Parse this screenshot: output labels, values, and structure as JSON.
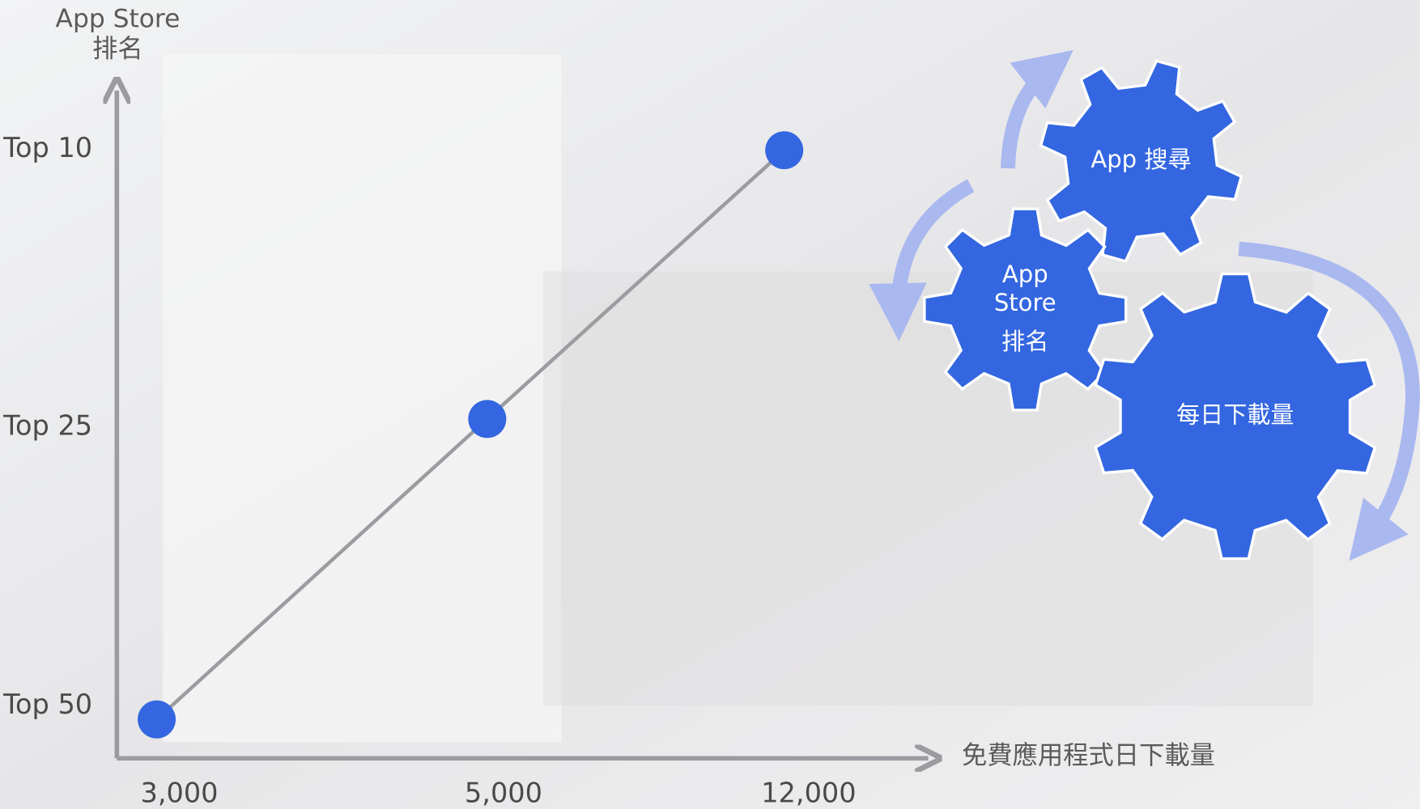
{
  "chart_data": {
    "type": "line",
    "x_label": "免費應用程式日下載量",
    "y_label": [
      "App Store",
      "排名"
    ],
    "categories": [
      "3,000",
      "5,000",
      "12,000"
    ],
    "y_categories": [
      "Top 50",
      "Top 25",
      "Top 10"
    ],
    "series": [
      {
        "color": "#3366e0",
        "values": [
          "Top 50",
          "Top 25",
          "Top 10"
        ]
      }
    ]
  },
  "diagram": {
    "gears": [
      {
        "label": [
          "App 搜尋"
        ]
      },
      {
        "label": [
          "App",
          "Store",
          "排名"
        ]
      },
      {
        "label": [
          "每日下載量"
        ]
      }
    ]
  }
}
